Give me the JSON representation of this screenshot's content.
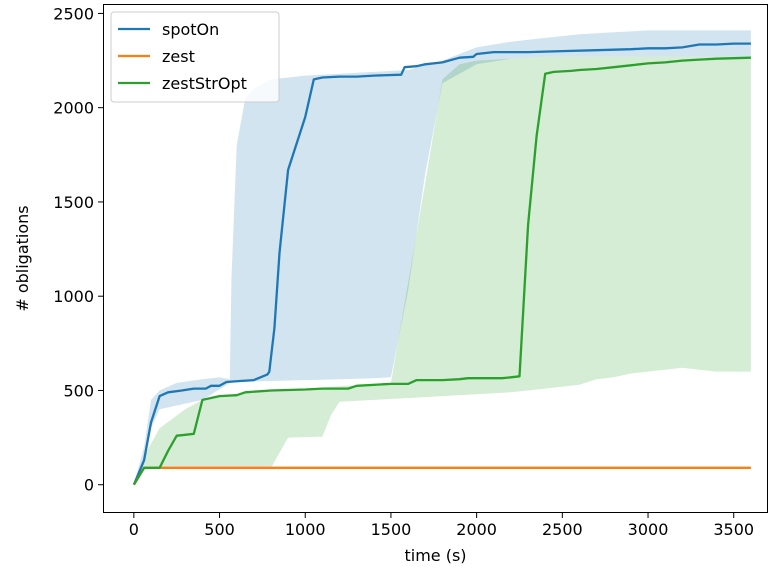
{
  "chart_data": {
    "type": "line",
    "xlabel": "time (s)",
    "ylabel": "# obligations",
    "xlim": [
      -180,
      3700
    ],
    "ylim": [
      -150,
      2550
    ],
    "x_ticks": [
      0,
      500,
      1000,
      1500,
      2000,
      2500,
      3000,
      3500
    ],
    "y_ticks": [
      0,
      500,
      1000,
      1500,
      2000,
      2500
    ],
    "grid": false,
    "legend_position": "top-left",
    "series": [
      {
        "name": "spotOn",
        "color": "#1f77b4",
        "points": [
          [
            0,
            0
          ],
          [
            60,
            130
          ],
          [
            100,
            330
          ],
          [
            150,
            470
          ],
          [
            200,
            490
          ],
          [
            280,
            500
          ],
          [
            350,
            510
          ],
          [
            420,
            510
          ],
          [
            450,
            525
          ],
          [
            500,
            525
          ],
          [
            540,
            545
          ],
          [
            620,
            550
          ],
          [
            700,
            555
          ],
          [
            780,
            585
          ],
          [
            790,
            600
          ],
          [
            820,
            830
          ],
          [
            850,
            1230
          ],
          [
            900,
            1670
          ],
          [
            1000,
            1950
          ],
          [
            1050,
            2150
          ],
          [
            1100,
            2160
          ],
          [
            1200,
            2165
          ],
          [
            1300,
            2165
          ],
          [
            1400,
            2170
          ],
          [
            1560,
            2175
          ],
          [
            1580,
            2215
          ],
          [
            1650,
            2220
          ],
          [
            1700,
            2230
          ],
          [
            1800,
            2240
          ],
          [
            1900,
            2265
          ],
          [
            1980,
            2270
          ],
          [
            2000,
            2285
          ],
          [
            2100,
            2295
          ],
          [
            2300,
            2295
          ],
          [
            2500,
            2300
          ],
          [
            2700,
            2305
          ],
          [
            2900,
            2310
          ],
          [
            3000,
            2315
          ],
          [
            3100,
            2315
          ],
          [
            3200,
            2320
          ],
          [
            3300,
            2335
          ],
          [
            3400,
            2335
          ],
          [
            3500,
            2340
          ],
          [
            3600,
            2340
          ]
        ],
        "band_upper": [
          [
            0,
            0
          ],
          [
            60,
            200
          ],
          [
            100,
            450
          ],
          [
            150,
            500
          ],
          [
            250,
            540
          ],
          [
            400,
            560
          ],
          [
            500,
            570
          ],
          [
            560,
            560
          ],
          [
            570,
            1100
          ],
          [
            600,
            1800
          ],
          [
            650,
            2050
          ],
          [
            700,
            2100
          ],
          [
            800,
            2150
          ],
          [
            1000,
            2170
          ],
          [
            1200,
            2180
          ],
          [
            1400,
            2190
          ],
          [
            1600,
            2200
          ],
          [
            1800,
            2250
          ],
          [
            2000,
            2320
          ],
          [
            2200,
            2350
          ],
          [
            2400,
            2370
          ],
          [
            2600,
            2390
          ],
          [
            2800,
            2400
          ],
          [
            3000,
            2410
          ],
          [
            3200,
            2410
          ],
          [
            3400,
            2410
          ],
          [
            3600,
            2410
          ]
        ],
        "band_lower": [
          [
            0,
            0
          ],
          [
            60,
            110
          ],
          [
            100,
            300
          ],
          [
            150,
            400
          ],
          [
            250,
            420
          ],
          [
            400,
            450
          ],
          [
            560,
            540
          ],
          [
            600,
            545
          ],
          [
            800,
            550
          ],
          [
            1000,
            555
          ],
          [
            1200,
            560
          ],
          [
            1400,
            565
          ],
          [
            1500,
            570
          ],
          [
            1600,
            1030
          ],
          [
            1700,
            1650
          ],
          [
            1800,
            2130
          ],
          [
            2000,
            2230
          ],
          [
            2200,
            2260
          ],
          [
            2400,
            2270
          ],
          [
            2600,
            2270
          ],
          [
            2800,
            2270
          ],
          [
            3000,
            2270
          ],
          [
            3200,
            2270
          ],
          [
            3400,
            2270
          ],
          [
            3600,
            2270
          ]
        ]
      },
      {
        "name": "zest",
        "color": "#ff7f0e",
        "points": [
          [
            0,
            0
          ],
          [
            60,
            90
          ],
          [
            200,
            90
          ],
          [
            3600,
            90
          ]
        ]
      },
      {
        "name": "zestStrOpt",
        "color": "#2ca02c",
        "points": [
          [
            0,
            0
          ],
          [
            60,
            90
          ],
          [
            150,
            90
          ],
          [
            200,
            180
          ],
          [
            250,
            260
          ],
          [
            300,
            265
          ],
          [
            350,
            270
          ],
          [
            400,
            450
          ],
          [
            450,
            460
          ],
          [
            500,
            470
          ],
          [
            600,
            475
          ],
          [
            650,
            490
          ],
          [
            800,
            500
          ],
          [
            1000,
            505
          ],
          [
            1100,
            510
          ],
          [
            1250,
            510
          ],
          [
            1300,
            525
          ],
          [
            1500,
            535
          ],
          [
            1600,
            535
          ],
          [
            1650,
            555
          ],
          [
            1800,
            555
          ],
          [
            1900,
            560
          ],
          [
            1950,
            565
          ],
          [
            2150,
            565
          ],
          [
            2200,
            570
          ],
          [
            2250,
            575
          ],
          [
            2300,
            1380
          ],
          [
            2350,
            1850
          ],
          [
            2400,
            2180
          ],
          [
            2450,
            2190
          ],
          [
            2550,
            2195
          ],
          [
            2600,
            2200
          ],
          [
            2700,
            2205
          ],
          [
            2800,
            2215
          ],
          [
            2900,
            2225
          ],
          [
            3000,
            2235
          ],
          [
            3100,
            2240
          ],
          [
            3200,
            2250
          ],
          [
            3300,
            2255
          ],
          [
            3400,
            2260
          ],
          [
            3600,
            2265
          ]
        ],
        "band_upper": [
          [
            0,
            0
          ],
          [
            60,
            150
          ],
          [
            150,
            300
          ],
          [
            300,
            400
          ],
          [
            400,
            450
          ],
          [
            600,
            480
          ],
          [
            800,
            500
          ],
          [
            1000,
            510
          ],
          [
            1500,
            540
          ],
          [
            1700,
            1600
          ],
          [
            1800,
            2150
          ],
          [
            1900,
            2230
          ],
          [
            2000,
            2250
          ],
          [
            2200,
            2260
          ],
          [
            2400,
            2270
          ],
          [
            2600,
            2270
          ],
          [
            2800,
            2270
          ],
          [
            3000,
            2270
          ],
          [
            3200,
            2270
          ],
          [
            3400,
            2270
          ],
          [
            3600,
            2270
          ]
        ],
        "band_lower": [
          [
            0,
            0
          ],
          [
            60,
            80
          ],
          [
            200,
            90
          ],
          [
            800,
            90
          ],
          [
            900,
            250
          ],
          [
            1100,
            255
          ],
          [
            1150,
            370
          ],
          [
            1200,
            440
          ],
          [
            1400,
            450
          ],
          [
            1600,
            460
          ],
          [
            1800,
            470
          ],
          [
            2000,
            480
          ],
          [
            2200,
            490
          ],
          [
            2400,
            510
          ],
          [
            2600,
            530
          ],
          [
            2700,
            560
          ],
          [
            2800,
            570
          ],
          [
            2900,
            590
          ],
          [
            3000,
            600
          ],
          [
            3100,
            610
          ],
          [
            3200,
            620
          ],
          [
            3300,
            610
          ],
          [
            3400,
            600
          ],
          [
            3600,
            600
          ]
        ]
      }
    ]
  }
}
